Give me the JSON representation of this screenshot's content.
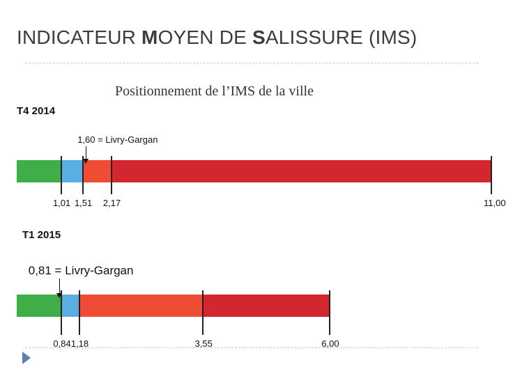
{
  "slide": {
    "title": "INDICATEUR MOYEN DE SALISSURE (IMS)",
    "subtitle": "Positionnement de l’IMS de la ville"
  },
  "colors": {
    "green": "#3fae49",
    "blue": "#5aaee3",
    "orange": "#ee4c35",
    "red": "#d4262f",
    "nav": "#5c7fb3"
  },
  "chart_data": [
    {
      "type": "scale",
      "title": "T4 2014",
      "thresholds": [
        1.01,
        1.51,
        2.17,
        11.0
      ],
      "tick_labels": [
        "1,01",
        "1,51",
        "2,17",
        "11,00"
      ],
      "segments": [
        {
          "color": "green",
          "from": 0,
          "to": 1.01
        },
        {
          "color": "blue",
          "from": 1.01,
          "to": 1.51
        },
        {
          "color": "orange",
          "from": 1.51,
          "to": 2.17
        },
        {
          "color": "red",
          "from": 2.17,
          "to": 11.0
        }
      ],
      "marker": {
        "value": 1.6,
        "label": "1,60 = Livry-Gargan"
      }
    },
    {
      "type": "scale",
      "title": "T1 2015",
      "thresholds": [
        0.84,
        1.18,
        3.55,
        6.0
      ],
      "tick_labels": [
        "0,84",
        "1,18",
        "3,55",
        "6,00"
      ],
      "segments": [
        {
          "color": "green",
          "from": 0,
          "to": 0.84
        },
        {
          "color": "blue",
          "from": 0.84,
          "to": 1.18
        },
        {
          "color": "orange",
          "from": 1.18,
          "to": 3.55
        },
        {
          "color": "red",
          "from": 3.55,
          "to": 6.0
        }
      ],
      "marker": {
        "value": 0.81,
        "label": "0,81 = Livry-Gargan"
      }
    }
  ]
}
